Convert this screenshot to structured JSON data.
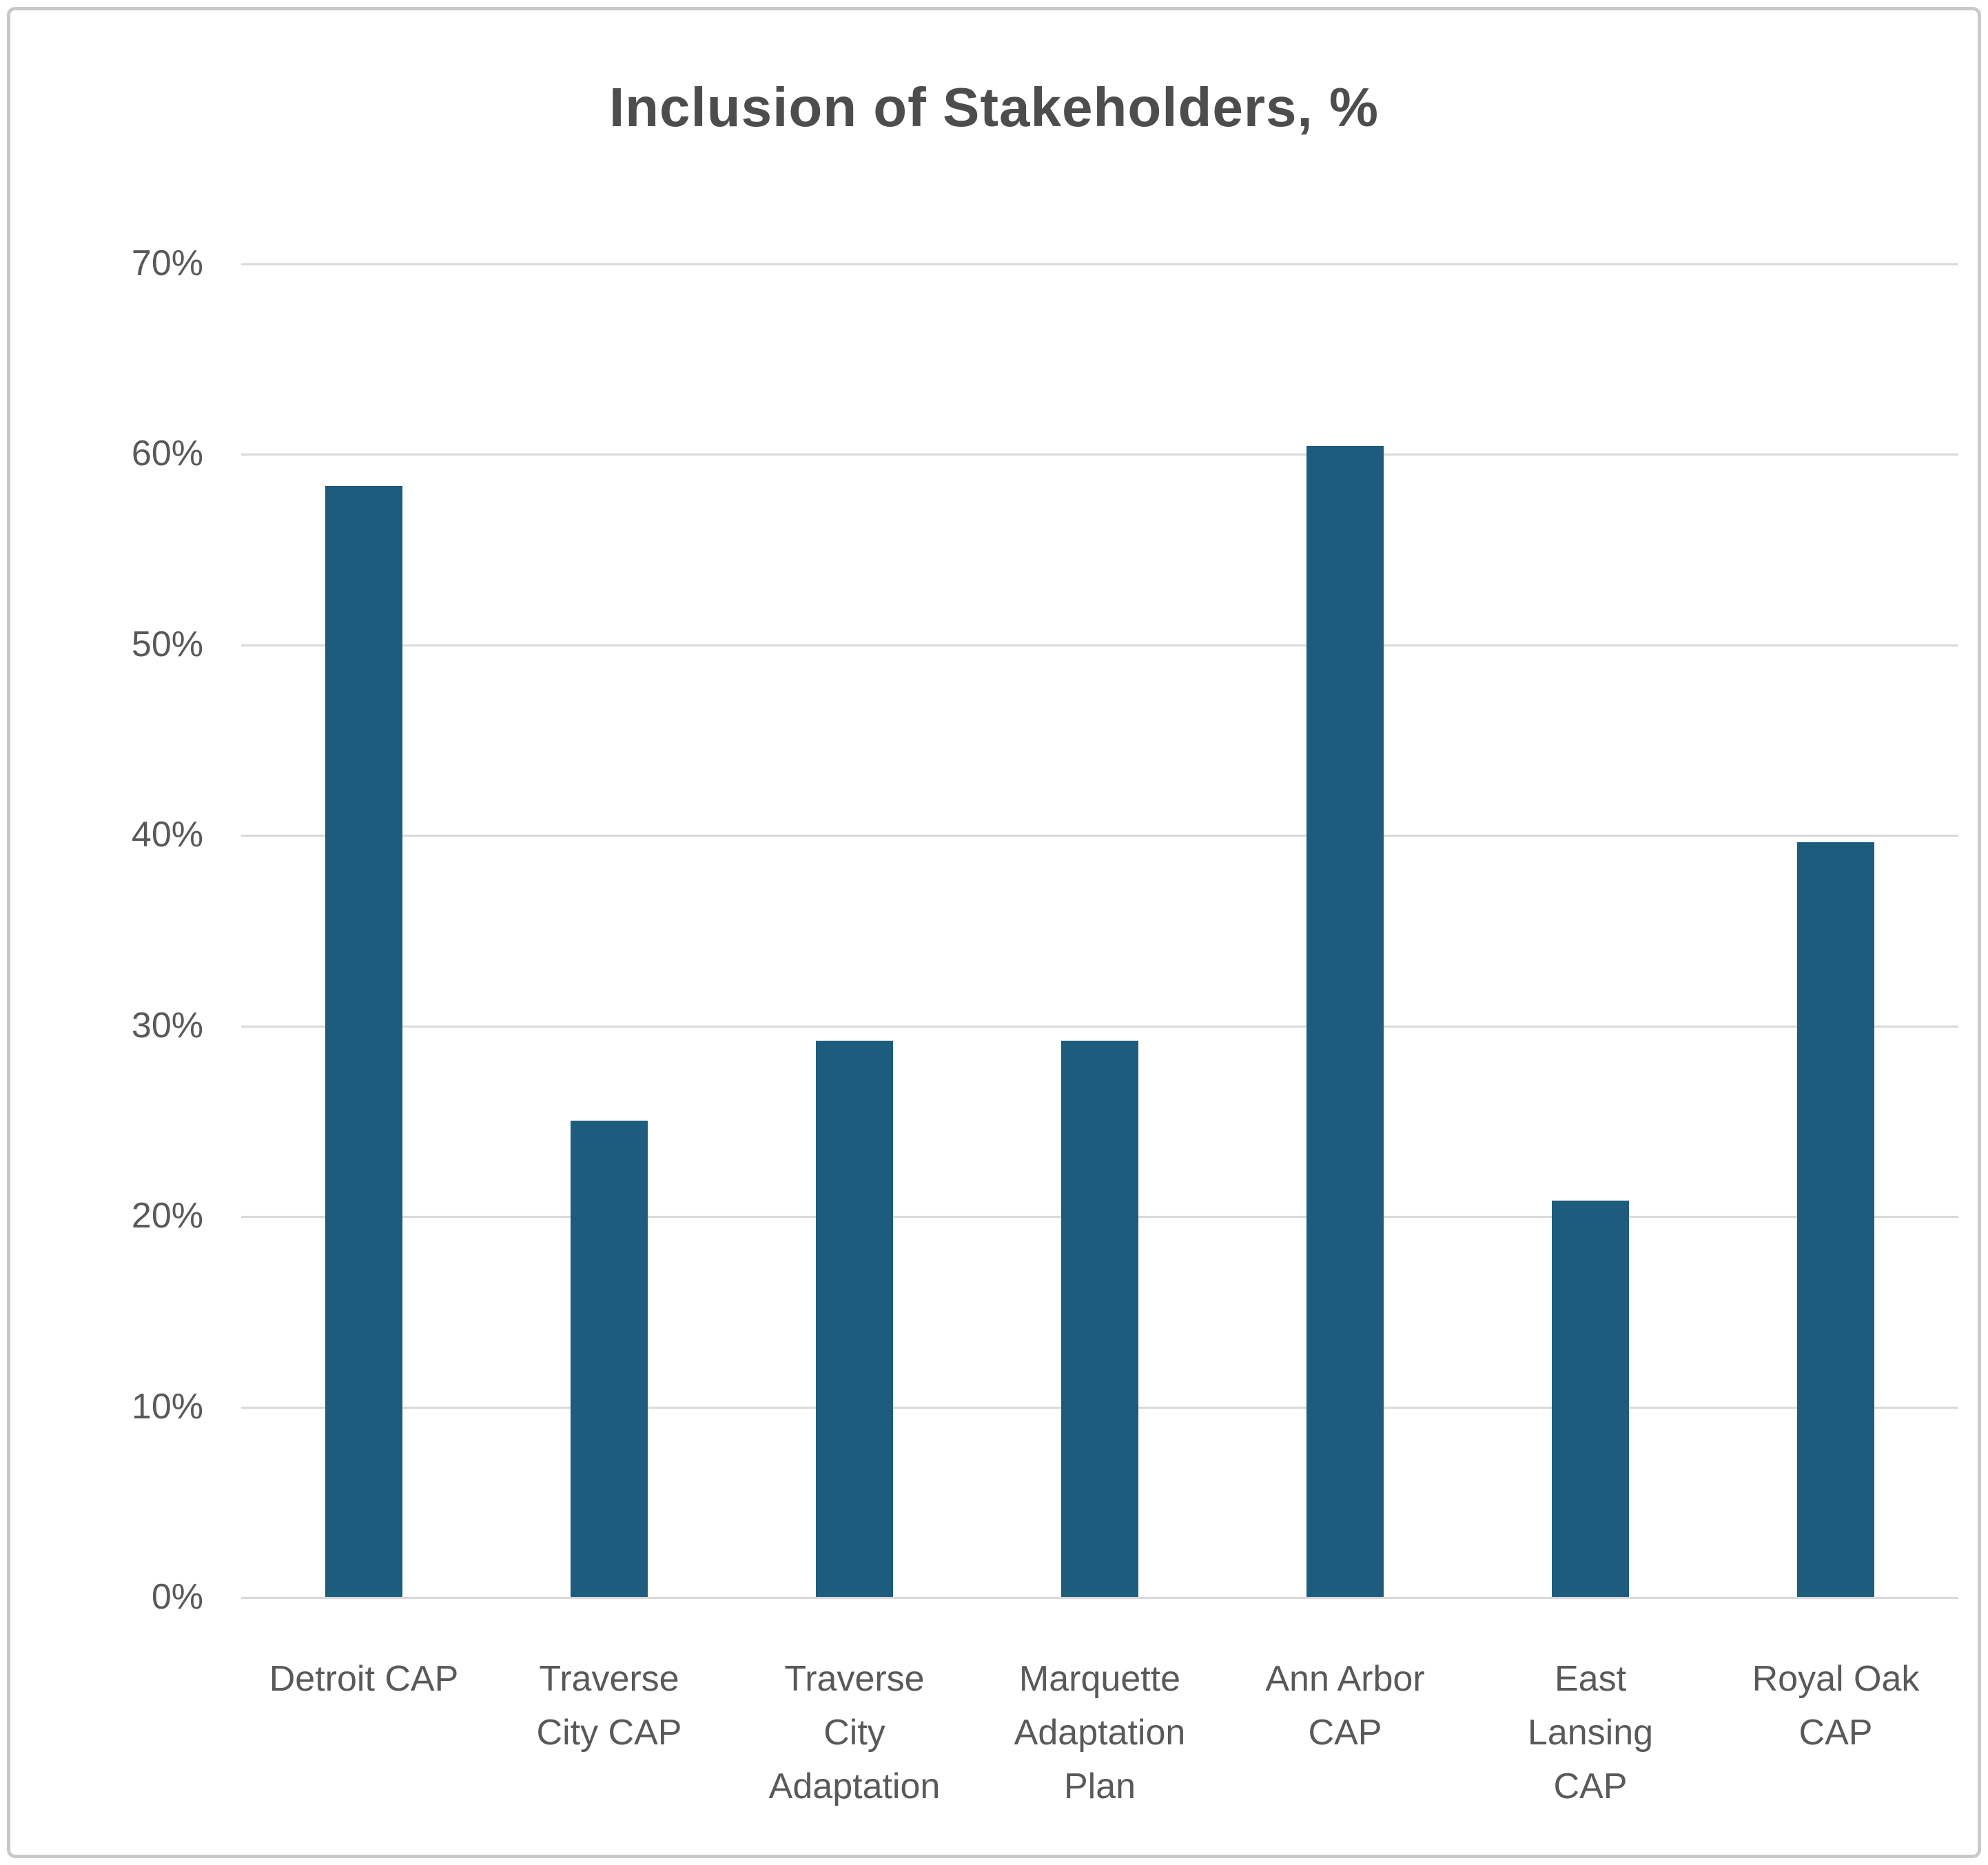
{
  "colors": {
    "bar": "#1E5C7E",
    "grid": "#D9D9D9",
    "text": "#595959",
    "title_text": "#4D4D4D",
    "frame_border": "#C9C9C9"
  },
  "chart_data": {
    "type": "bar",
    "title": "Inclusion of Stakeholders, %",
    "categories": [
      "Detroit CAP",
      "Traverse City CAP",
      "Traverse City Adaptation",
      "Marquette Adaptation Plan",
      "Ann Arbor CAP",
      "East Lansing CAP",
      "Royal Oak CAP"
    ],
    "category_lines": [
      [
        "Detroit CAP"
      ],
      [
        "Traverse",
        "City CAP"
      ],
      [
        "Traverse",
        "City",
        "Adaptation"
      ],
      [
        "Marquette",
        "Adaptation",
        "Plan"
      ],
      [
        "Ann Arbor",
        "CAP"
      ],
      [
        "East",
        "Lansing",
        "CAP"
      ],
      [
        "Royal Oak",
        "CAP"
      ]
    ],
    "values": [
      58.3,
      25.0,
      29.2,
      29.2,
      60.4,
      20.8,
      39.6
    ],
    "xlabel": "",
    "ylabel": "",
    "ylim": [
      0,
      70
    ],
    "ytick_step": 10,
    "ytick_labels": [
      "0%",
      "10%",
      "20%",
      "30%",
      "40%",
      "50%",
      "60%",
      "70%"
    ],
    "grid": true,
    "legend": false
  }
}
